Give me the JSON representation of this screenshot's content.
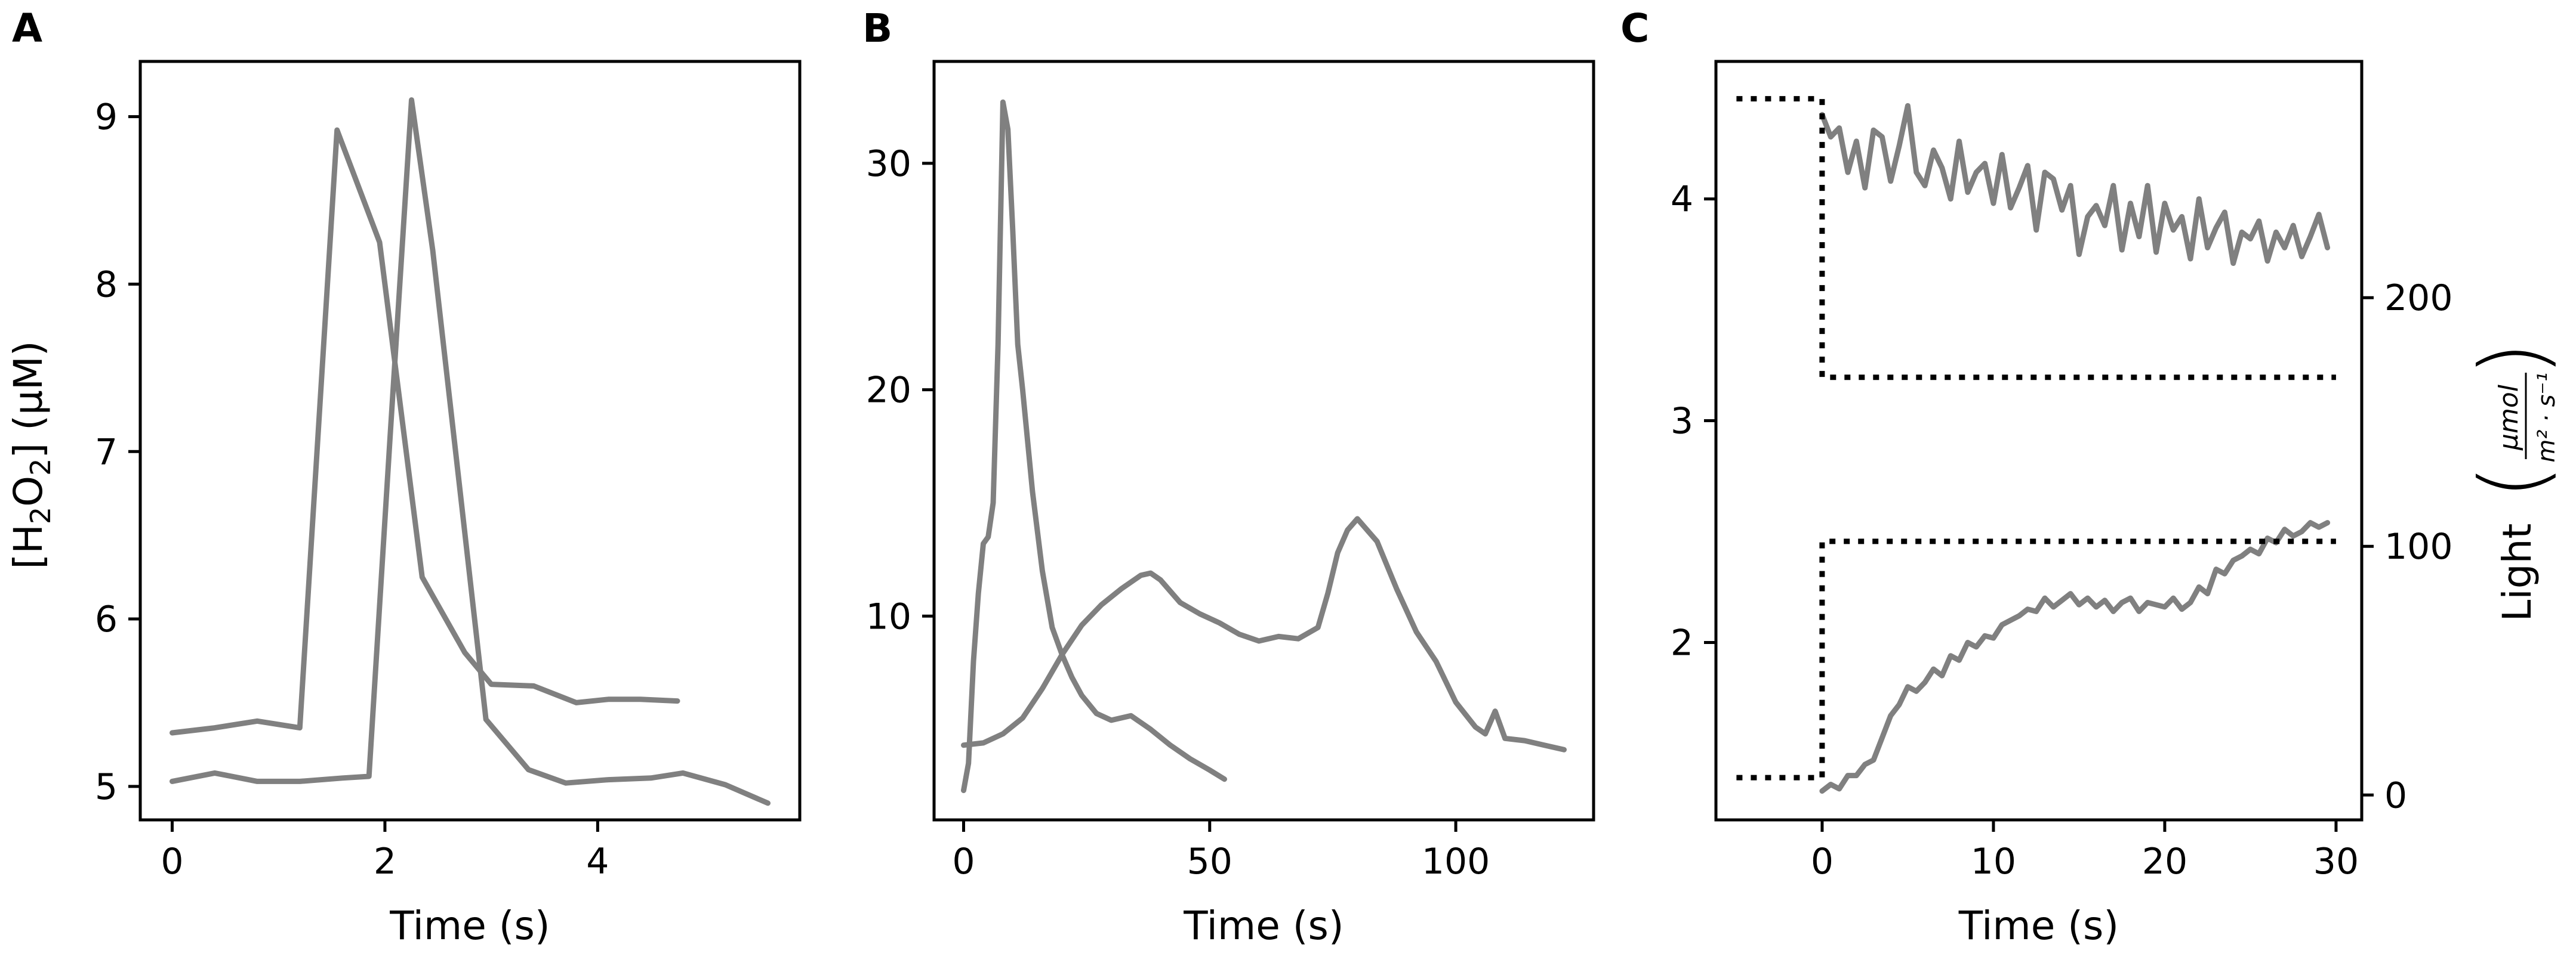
{
  "chart_data": [
    {
      "panel": "A",
      "type": "line",
      "xlabel": "Time (s)",
      "ylabel_parts": [
        "[H",
        "2",
        "O",
        "2",
        "] (µM)"
      ],
      "xlim": [
        -0.3,
        5.9
      ],
      "ylim": [
        4.8,
        9.33
      ],
      "xticks": [
        0,
        2,
        4
      ],
      "yticks": [
        5,
        6,
        7,
        8,
        9
      ],
      "series": [
        {
          "x": [
            0,
            0.4,
            0.8,
            1.2,
            1.55,
            1.95,
            2.35,
            2.75,
            3.0,
            3.4,
            3.8,
            4.1,
            4.4,
            4.75
          ],
          "y": [
            5.32,
            5.35,
            5.39,
            5.35,
            8.92,
            8.25,
            6.25,
            5.8,
            5.61,
            5.6,
            5.5,
            5.52,
            5.52,
            5.51
          ]
        },
        {
          "x": [
            0,
            0.4,
            0.8,
            1.2,
            1.6,
            1.85,
            2.05,
            2.25,
            2.45,
            2.7,
            2.95,
            3.35,
            3.7,
            4.1,
            4.5,
            4.8,
            5.2,
            5.6
          ],
          "y": [
            5.03,
            5.08,
            5.03,
            5.03,
            5.05,
            5.06,
            7.1,
            9.1,
            8.2,
            6.8,
            5.4,
            5.1,
            5.02,
            5.04,
            5.05,
            5.08,
            5.01,
            4.9
          ]
        }
      ]
    },
    {
      "panel": "B",
      "type": "line",
      "xlabel": "Time (s)",
      "ylabel": "",
      "xlim": [
        -6,
        128
      ],
      "ylim": [
        1,
        34.5
      ],
      "xticks": [
        0,
        50,
        100
      ],
      "yticks": [
        10,
        20,
        30
      ],
      "series": [
        {
          "x": [
            0,
            1,
            2,
            3,
            4,
            5,
            6,
            7,
            8,
            9,
            10,
            11,
            12,
            14,
            16,
            18,
            20,
            22,
            24,
            27,
            30,
            34,
            38,
            42,
            46,
            50,
            53
          ],
          "y": [
            2.3,
            3.5,
            8,
            11,
            13.2,
            13.5,
            15,
            22,
            32.7,
            31.5,
            27,
            22,
            20,
            15.5,
            12,
            9.5,
            8.3,
            7.3,
            6.5,
            5.7,
            5.4,
            5.6,
            5.0,
            4.3,
            3.7,
            3.2,
            2.8
          ]
        },
        {
          "x": [
            0,
            4,
            8,
            12,
            16,
            20,
            24,
            28,
            32,
            36,
            38,
            40,
            44,
            48,
            52,
            56,
            60,
            64,
            68,
            72,
            74,
            76,
            78,
            80,
            82,
            84,
            88,
            92,
            96,
            100,
            104,
            106,
            108,
            110,
            114,
            118,
            122
          ],
          "y": [
            4.3,
            4.4,
            4.8,
            5.5,
            6.8,
            8.3,
            9.6,
            10.5,
            11.2,
            11.8,
            11.9,
            11.6,
            10.6,
            10.1,
            9.7,
            9.2,
            8.9,
            9.1,
            9.0,
            9.5,
            11.0,
            12.8,
            13.8,
            14.3,
            13.8,
            13.3,
            11.2,
            9.3,
            8.0,
            6.2,
            5.1,
            4.8,
            5.8,
            4.6,
            4.5,
            4.3,
            4.1
          ]
        }
      ]
    },
    {
      "panel": "C",
      "type": "line",
      "xlabel": "Time (s)",
      "ylabel": "",
      "y2label": "Light",
      "y2unit_numerator": "μmol",
      "y2unit_denominator": "m² · s⁻¹",
      "xlim": [
        -6.2,
        31.5
      ],
      "ylim": [
        1.2,
        4.62
      ],
      "y2lim": [
        -10,
        295
      ],
      "xticks": [
        0,
        10,
        20,
        30
      ],
      "yticks": [
        2,
        3,
        4
      ],
      "y2ticks": [
        0,
        100,
        200
      ],
      "series": [
        {
          "x": [
            0,
            0.5,
            1,
            1.5,
            2,
            2.5,
            3,
            3.5,
            4,
            4.5,
            5,
            5.5,
            6,
            6.5,
            7,
            7.5,
            8,
            8.5,
            9,
            9.5,
            10,
            10.5,
            11,
            11.5,
            12,
            12.5,
            13,
            13.5,
            14,
            14.5,
            15,
            15.5,
            16,
            16.5,
            17,
            17.5,
            18,
            18.5,
            19,
            19.5,
            20,
            20.5,
            21,
            21.5,
            22,
            22.5,
            23,
            23.5,
            24,
            24.5,
            25,
            25.5,
            26,
            26.5,
            27,
            27.5,
            28,
            28.5,
            29,
            29.5
          ],
          "y": [
            4.38,
            4.28,
            4.32,
            4.12,
            4.26,
            4.05,
            4.31,
            4.28,
            4.08,
            4.24,
            4.42,
            4.12,
            4.06,
            4.22,
            4.14,
            4.0,
            4.26,
            4.03,
            4.12,
            4.16,
            3.98,
            4.2,
            3.96,
            4.05,
            4.15,
            3.86,
            4.12,
            4.09,
            3.95,
            4.06,
            3.75,
            3.92,
            3.97,
            3.88,
            4.06,
            3.77,
            3.98,
            3.83,
            4.06,
            3.76,
            3.98,
            3.86,
            3.92,
            3.73,
            4.0,
            3.78,
            3.87,
            3.94,
            3.71,
            3.85,
            3.82,
            3.9,
            3.72,
            3.85,
            3.78,
            3.88,
            3.74,
            3.83,
            3.93,
            3.78
          ]
        },
        {
          "x": [
            0,
            0.5,
            1,
            1.5,
            2,
            2.5,
            3,
            3.5,
            4,
            4.5,
            5,
            5.5,
            6,
            6.5,
            7,
            7.5,
            8,
            8.5,
            9,
            9.5,
            10,
            10.5,
            11,
            11.5,
            12,
            12.5,
            13,
            13.5,
            14,
            14.5,
            15,
            15.5,
            16,
            16.5,
            17,
            17.5,
            18,
            18.5,
            19,
            19.5,
            20,
            20.5,
            21,
            21.5,
            22,
            22.5,
            23,
            23.5,
            24,
            24.5,
            25,
            25.5,
            26,
            26.5,
            27,
            27.5,
            28,
            28.5,
            29,
            29.5
          ],
          "y": [
            1.33,
            1.36,
            1.34,
            1.4,
            1.4,
            1.45,
            1.47,
            1.57,
            1.67,
            1.72,
            1.8,
            1.78,
            1.82,
            1.88,
            1.85,
            1.94,
            1.92,
            2.0,
            1.98,
            2.03,
            2.02,
            2.08,
            2.1,
            2.12,
            2.15,
            2.14,
            2.2,
            2.16,
            2.19,
            2.22,
            2.17,
            2.2,
            2.16,
            2.19,
            2.14,
            2.18,
            2.2,
            2.14,
            2.18,
            2.17,
            2.16,
            2.2,
            2.15,
            2.18,
            2.25,
            2.22,
            2.33,
            2.31,
            2.37,
            2.39,
            2.42,
            2.4,
            2.47,
            2.45,
            2.51,
            2.48,
            2.5,
            2.54,
            2.52,
            2.54
          ]
        }
      ],
      "light_series": [
        {
          "x": [
            -5,
            0,
            0,
            30
          ],
          "y": [
            280,
            280,
            168,
            168
          ]
        },
        {
          "x": [
            -5,
            0,
            0,
            30
          ],
          "y": [
            7,
            7,
            102,
            102
          ]
        }
      ]
    }
  ]
}
